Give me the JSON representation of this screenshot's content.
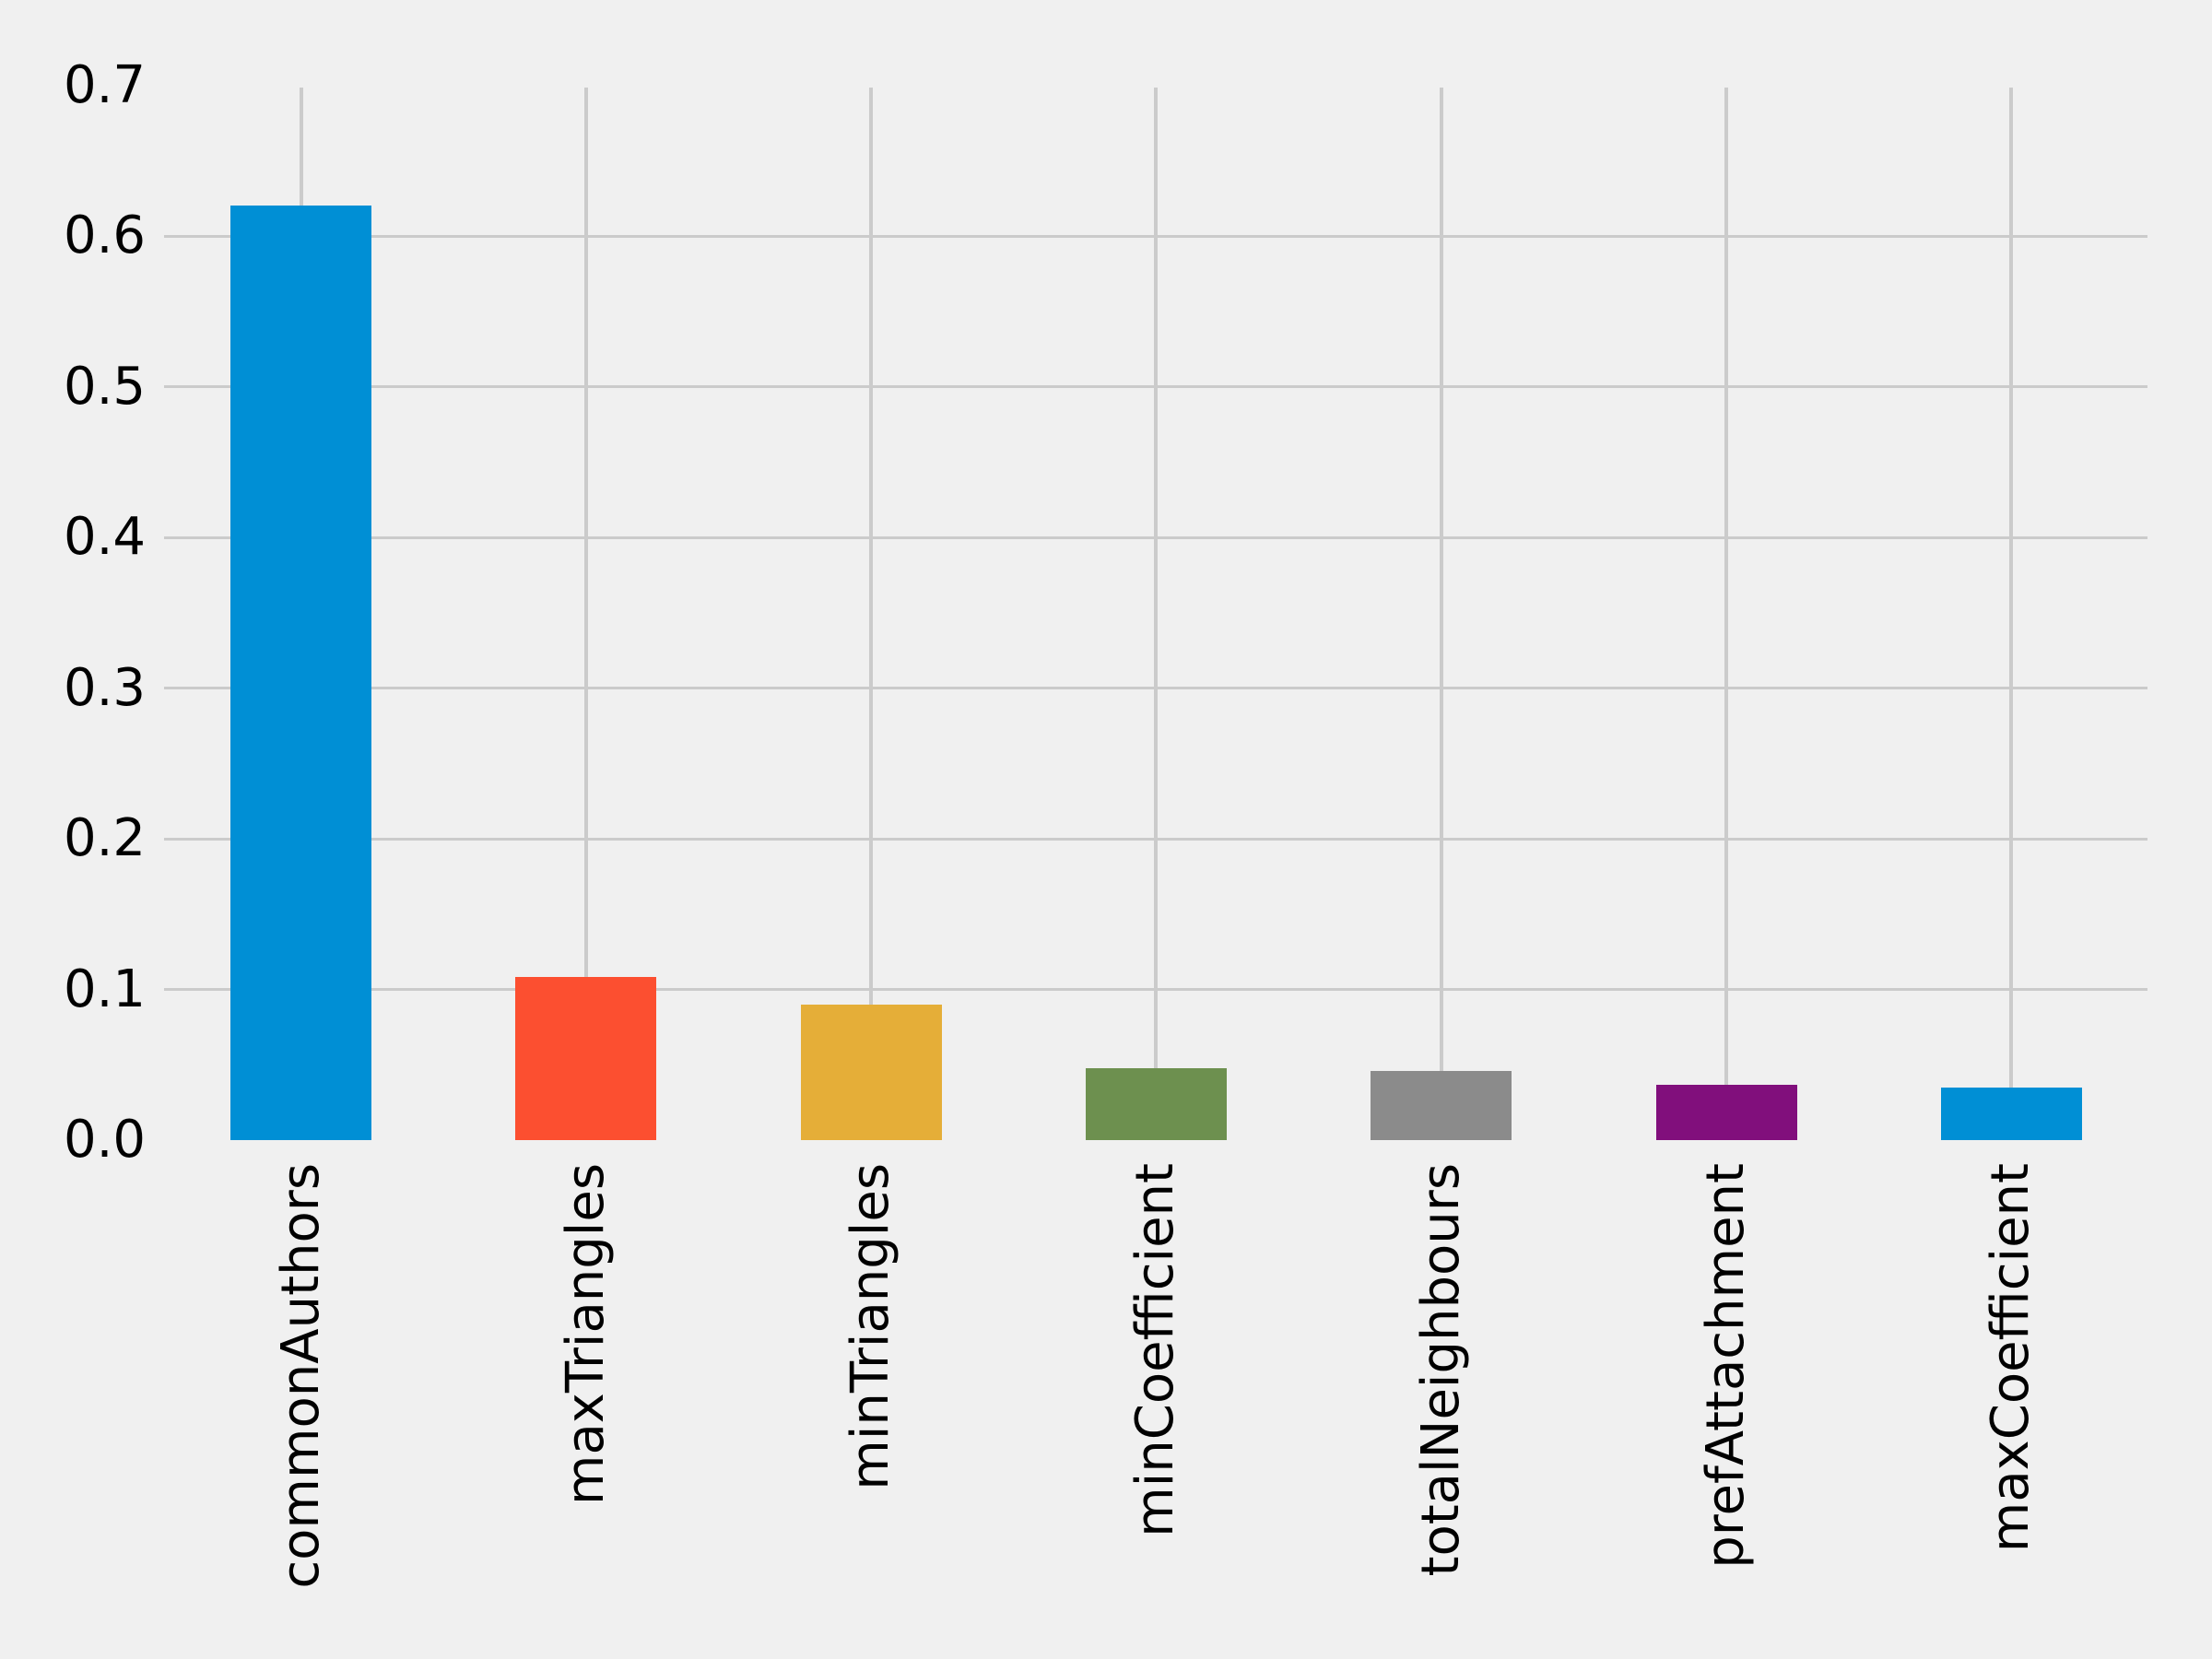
{
  "chart_data": {
    "type": "bar",
    "title": "",
    "xlabel": "",
    "ylabel": "",
    "categories": [
      "commonAuthors",
      "maxTriangles",
      "minTriangles",
      "minCoefficient",
      "totalNeighbours",
      "prefAttachment",
      "maxCoefficient"
    ],
    "values": [
      0.62,
      0.108,
      0.09,
      0.048,
      0.046,
      0.037,
      0.035
    ],
    "bar_colors": [
      "#008fd5",
      "#fc4f30",
      "#e5ae38",
      "#6d904f",
      "#8b8b8b",
      "#810f7c",
      "#008fd5"
    ],
    "yticks": [
      0.0,
      0.1,
      0.2,
      0.3,
      0.4,
      0.5,
      0.6,
      0.7
    ],
    "ytick_labels": [
      "0.0",
      "0.1",
      "0.2",
      "0.3",
      "0.4",
      "0.5",
      "0.6",
      "0.7"
    ],
    "ylim": [
      0,
      0.7
    ],
    "grid": true,
    "legend_position": "none",
    "x_label_rotation_deg": 90
  },
  "colors": {
    "background": "#f0f0f0",
    "grid": "#cbcbcb",
    "text": "#000000"
  }
}
